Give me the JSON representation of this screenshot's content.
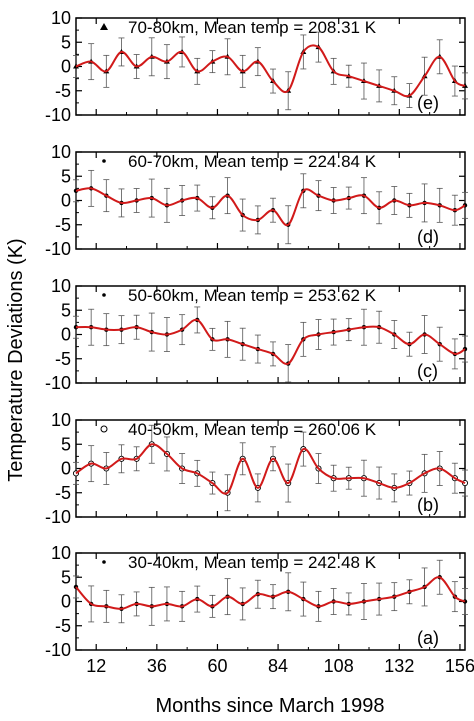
{
  "figure": {
    "ylabel": "Temperature Deviations (K)",
    "xlabel": "Months since March 1998"
  },
  "chart_data": [
    {
      "type": "line",
      "panel_label": "(e)",
      "legend": "70-80km, Mean temp = 208.31 K",
      "marker": "filled-triangle",
      "xlim": [
        4,
        158
      ],
      "ylim": [
        -10,
        10
      ],
      "xticks": [
        12,
        36,
        60,
        84,
        108,
        132,
        156
      ],
      "yticks": [
        -10,
        -5,
        0,
        5,
        10
      ],
      "series": [
        {
          "x": [
            4,
            10,
            16,
            22,
            28,
            34,
            40,
            46,
            52,
            58,
            64,
            70,
            76,
            82,
            88,
            94,
            100,
            106,
            112,
            118,
            124,
            130,
            136,
            142,
            148,
            154,
            158
          ],
          "values": [
            0,
            1,
            -1,
            3,
            0,
            2,
            1,
            3,
            -1,
            1,
            2,
            -1,
            1,
            -3,
            -5,
            3,
            4,
            -1,
            -2,
            -3,
            -4,
            -5,
            -6,
            -2,
            2,
            -3,
            -4
          ]
        }
      ]
    },
    {
      "type": "line",
      "panel_label": "(d)",
      "legend": "60-70km, Mean temp = 224.84 K",
      "marker": "small-filled-dot",
      "xlim": [
        4,
        158
      ],
      "ylim": [
        -10,
        10
      ],
      "xticks": [
        12,
        36,
        60,
        84,
        108,
        132,
        156
      ],
      "yticks": [
        -10,
        -5,
        0,
        5,
        10
      ],
      "series": [
        {
          "x": [
            4,
            10,
            16,
            22,
            28,
            34,
            40,
            46,
            52,
            58,
            64,
            70,
            76,
            82,
            88,
            94,
            100,
            106,
            112,
            118,
            124,
            130,
            136,
            142,
            148,
            154,
            158
          ],
          "values": [
            2,
            2.5,
            1,
            -0.5,
            0,
            0.5,
            -1,
            0,
            0.5,
            -1.5,
            1,
            -3,
            -4,
            -2,
            -5,
            2,
            1,
            0,
            0.5,
            1,
            -1.5,
            0,
            -1,
            -0.5,
            -1,
            -2,
            -1
          ]
        }
      ]
    },
    {
      "type": "line",
      "panel_label": "(c)",
      "legend": "50-60km, Mean temp = 253.62 K",
      "marker": "small-filled-dot",
      "xlim": [
        4,
        158
      ],
      "ylim": [
        -10,
        10
      ],
      "xticks": [
        12,
        36,
        60,
        84,
        108,
        132,
        156
      ],
      "yticks": [
        -10,
        -5,
        0,
        5,
        10
      ],
      "series": [
        {
          "x": [
            4,
            10,
            16,
            22,
            28,
            34,
            40,
            46,
            52,
            58,
            64,
            70,
            76,
            82,
            88,
            94,
            100,
            106,
            112,
            118,
            124,
            130,
            136,
            142,
            148,
            154,
            158
          ],
          "values": [
            1.5,
            1.5,
            1,
            1,
            1.5,
            0.5,
            0,
            1,
            3,
            -1,
            -1,
            -2,
            -3,
            -4,
            -6,
            -1,
            0,
            0.5,
            1,
            1.5,
            1.5,
            0,
            -2,
            0,
            -2,
            -4,
            -3
          ]
        }
      ]
    },
    {
      "type": "line",
      "panel_label": "(b)",
      "legend": "40-50km, Mean temp = 260.06 K",
      "marker": "open-circle",
      "xlim": [
        4,
        158
      ],
      "ylim": [
        -10,
        10
      ],
      "xticks": [
        12,
        36,
        60,
        84,
        108,
        132,
        156
      ],
      "yticks": [
        -10,
        -5,
        0,
        5,
        10
      ],
      "series": [
        {
          "x": [
            4,
            10,
            16,
            22,
            28,
            34,
            40,
            46,
            52,
            58,
            64,
            70,
            76,
            82,
            88,
            94,
            100,
            106,
            112,
            118,
            124,
            130,
            136,
            142,
            148,
            154,
            158
          ],
          "values": [
            -1,
            1,
            0,
            2,
            2,
            5,
            3,
            0,
            -1,
            -3,
            -5,
            2,
            -4,
            2,
            -3,
            4,
            0,
            -2,
            -2,
            -2,
            -3,
            -4,
            -3,
            -1,
            0,
            -2,
            -3
          ]
        }
      ]
    },
    {
      "type": "line",
      "panel_label": "(a)",
      "legend": "30-40km, Mean temp = 242.48 K",
      "marker": "small-filled-dot",
      "xlim": [
        4,
        158
      ],
      "ylim": [
        -10,
        10
      ],
      "xticks": [
        12,
        36,
        60,
        84,
        108,
        132,
        156
      ],
      "yticks": [
        -10,
        -5,
        0,
        5,
        10
      ],
      "series": [
        {
          "x": [
            4,
            10,
            16,
            22,
            28,
            34,
            40,
            46,
            52,
            58,
            64,
            70,
            76,
            82,
            88,
            94,
            100,
            106,
            112,
            118,
            124,
            130,
            136,
            142,
            148,
            154,
            158
          ],
          "values": [
            3,
            -0.5,
            -1,
            -1.5,
            -0.5,
            -1,
            -0.5,
            -1,
            0.5,
            -1,
            1,
            -0.5,
            1.5,
            1,
            2,
            0.5,
            -1,
            0,
            -0.5,
            0,
            0.5,
            1,
            2,
            3,
            5,
            1,
            0
          ]
        }
      ]
    }
  ]
}
